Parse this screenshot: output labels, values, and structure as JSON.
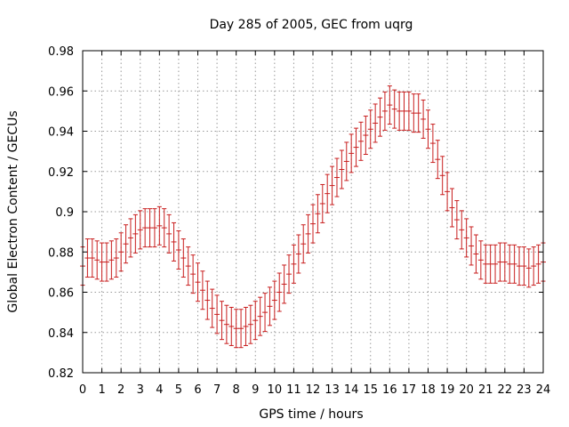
{
  "chart_data": {
    "type": "line",
    "title": "Day 285 of 2005, GEC from uqrg",
    "xlabel": "GPS time / hours",
    "ylabel": "Global Electron Content / GECUs",
    "xlim": [
      0,
      24
    ],
    "ylim": [
      0.82,
      0.98
    ],
    "grid": true,
    "x_ticks": [
      "0",
      "1",
      "2",
      "3",
      "4",
      "5",
      "6",
      "7",
      "8",
      "9",
      "10",
      "11",
      "12",
      "13",
      "14",
      "15",
      "16",
      "17",
      "18",
      "19",
      "20",
      "21",
      "22",
      "23",
      "24"
    ],
    "y_ticks": [
      "0.82",
      "0.84",
      "0.86",
      "0.88",
      "0.9",
      "0.92",
      "0.94",
      "0.96",
      "0.98"
    ],
    "series": [
      {
        "name": "GEC",
        "color": "#c81e1e",
        "error": 0.0095,
        "x": [
          0,
          0.25,
          0.5,
          0.75,
          1,
          1.25,
          1.5,
          1.75,
          2,
          2.25,
          2.5,
          2.75,
          3,
          3.25,
          3.5,
          3.75,
          4,
          4.25,
          4.5,
          4.75,
          5,
          5.25,
          5.5,
          5.75,
          6,
          6.25,
          6.5,
          6.75,
          7,
          7.25,
          7.5,
          7.75,
          8,
          8.25,
          8.5,
          8.75,
          9,
          9.25,
          9.5,
          9.75,
          10,
          10.25,
          10.5,
          10.75,
          11,
          11.25,
          11.5,
          11.75,
          12,
          12.25,
          12.5,
          12.75,
          13,
          13.25,
          13.5,
          13.75,
          14,
          14.25,
          14.5,
          14.75,
          15,
          15.25,
          15.5,
          15.75,
          16,
          16.25,
          16.5,
          16.75,
          17,
          17.25,
          17.5,
          17.75,
          18,
          18.25,
          18.5,
          18.75,
          19,
          19.25,
          19.5,
          19.75,
          20,
          20.25,
          20.5,
          20.75,
          21,
          21.25,
          21.5,
          21.75,
          22,
          22.25,
          22.5,
          22.75,
          23,
          23.25,
          23.5,
          23.75,
          24
        ],
        "values": [
          0.873,
          0.877,
          0.877,
          0.876,
          0.875,
          0.875,
          0.876,
          0.877,
          0.88,
          0.884,
          0.887,
          0.889,
          0.891,
          0.892,
          0.892,
          0.892,
          0.893,
          0.892,
          0.889,
          0.885,
          0.881,
          0.877,
          0.873,
          0.869,
          0.865,
          0.861,
          0.856,
          0.852,
          0.849,
          0.846,
          0.844,
          0.843,
          0.842,
          0.842,
          0.843,
          0.844,
          0.846,
          0.848,
          0.85,
          0.853,
          0.856,
          0.86,
          0.864,
          0.869,
          0.874,
          0.879,
          0.884,
          0.889,
          0.894,
          0.899,
          0.904,
          0.909,
          0.913,
          0.917,
          0.921,
          0.925,
          0.929,
          0.932,
          0.935,
          0.938,
          0.941,
          0.944,
          0.947,
          0.95,
          0.953,
          0.951,
          0.95,
          0.95,
          0.95,
          0.949,
          0.949,
          0.946,
          0.941,
          0.934,
          0.926,
          0.918,
          0.91,
          0.902,
          0.896,
          0.891,
          0.887,
          0.883,
          0.879,
          0.876,
          0.874,
          0.874,
          0.874,
          0.875,
          0.875,
          0.874,
          0.874,
          0.873,
          0.873,
          0.872,
          0.873,
          0.874,
          0.875
        ]
      }
    ]
  }
}
